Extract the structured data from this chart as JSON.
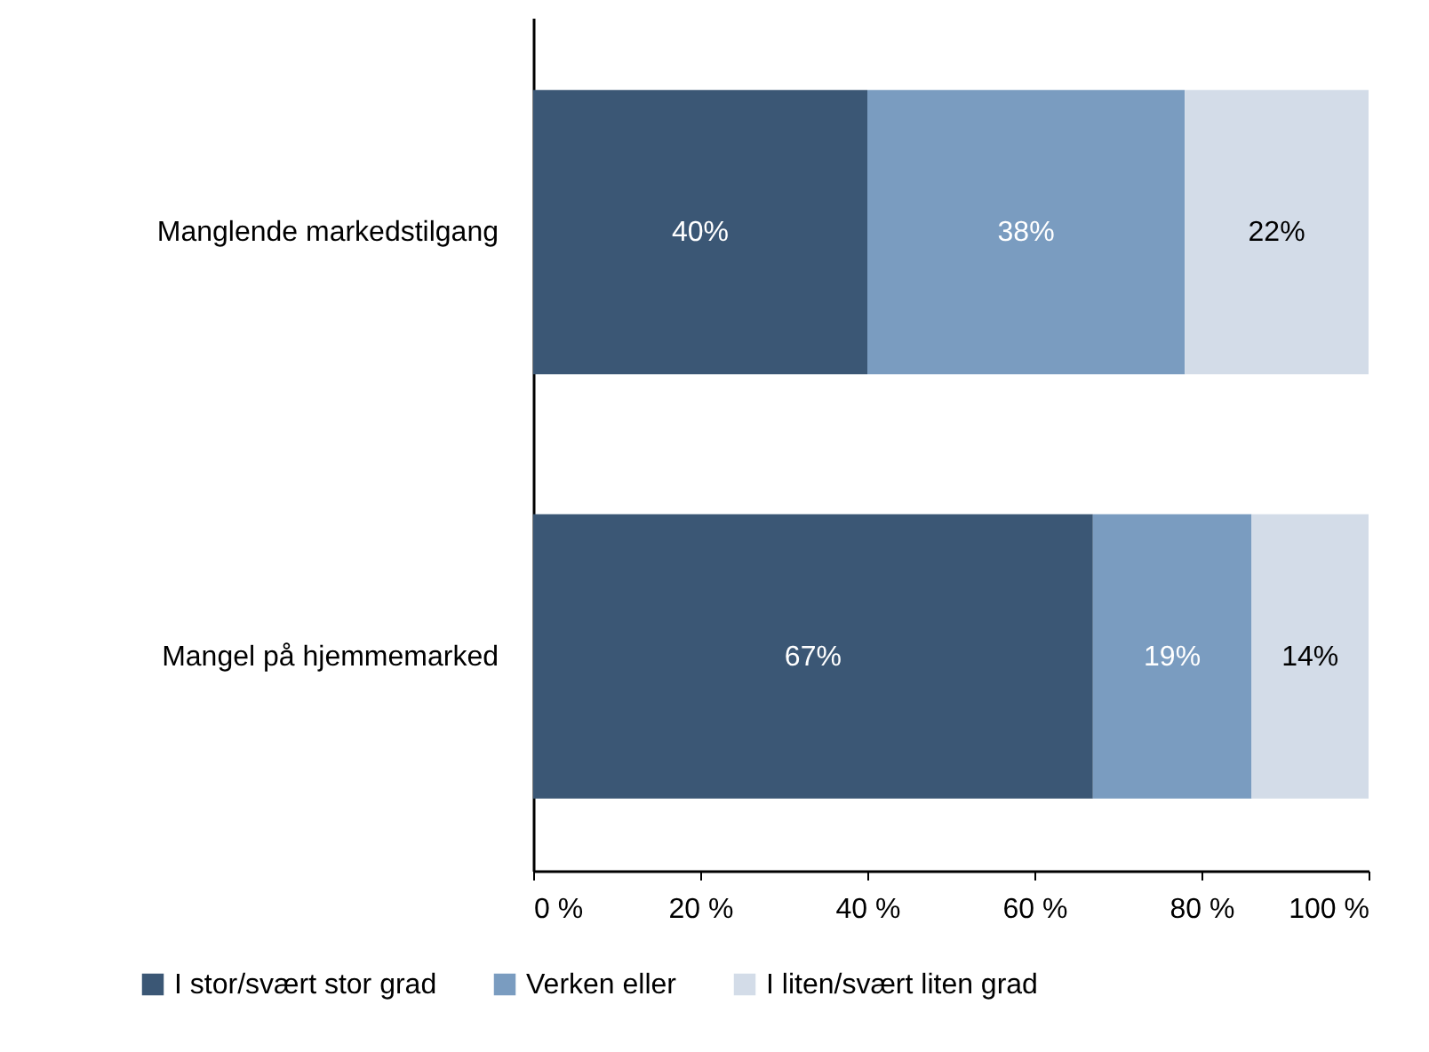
{
  "chart_data": {
    "type": "bar",
    "orientation": "horizontal",
    "stacked": true,
    "categories": [
      "Manglende markedstilgang",
      "Mangel på hjemmemarked"
    ],
    "series": [
      {
        "name": "I stor/svært stor grad",
        "color": "#3b5775",
        "values": [
          40,
          67
        ],
        "value_labels": [
          "40%",
          "67%"
        ]
      },
      {
        "name": "Verken eller",
        "color": "#7a9cc0",
        "values": [
          38,
          19
        ],
        "value_labels": [
          "38%",
          "19%"
        ]
      },
      {
        "name": "I liten/svært liten grad",
        "color": "#d3dce8",
        "values": [
          22,
          14
        ],
        "value_labels": [
          "22%",
          "14%"
        ]
      }
    ],
    "xlim": [
      0,
      100
    ],
    "xticks": [
      {
        "value": 0,
        "label": "0 %"
      },
      {
        "value": 20,
        "label": "20 %"
      },
      {
        "value": 40,
        "label": "40 %"
      },
      {
        "value": 60,
        "label": "60 %"
      },
      {
        "value": 80,
        "label": "80 %"
      },
      {
        "value": 100,
        "label": "100 %"
      }
    ],
    "grid": false,
    "legend": "bottom"
  }
}
